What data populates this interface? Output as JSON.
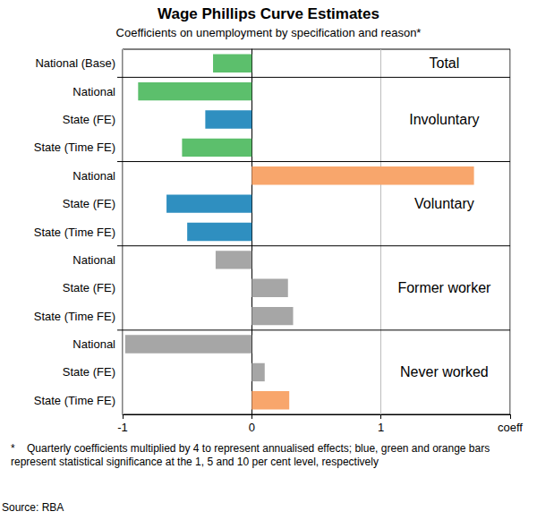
{
  "chart_data": {
    "type": "bar",
    "orientation": "horizontal",
    "title": "Wage Phillips Curve Estimates",
    "subtitle": "Coefficients on unemployment by specification and reason*",
    "categories": [
      "National (Base)",
      "National",
      "State (FE)",
      "State (Time FE)",
      "National",
      "State (FE)",
      "State (Time FE)",
      "National",
      "State (FE)",
      "State (Time FE)",
      "National",
      "State (FE)",
      "State (Time FE)"
    ],
    "values": [
      -0.3,
      -0.88,
      -0.36,
      -0.54,
      1.72,
      -0.66,
      -0.5,
      -0.28,
      0.28,
      0.32,
      -0.98,
      0.1,
      0.29
    ],
    "colors": [
      "#5cbf6c",
      "#5cbf6c",
      "#2f8fc0",
      "#5cbf6c",
      "#f8a66c",
      "#2f8fc0",
      "#2f8fc0",
      "#a6a6a6",
      "#a6a6a6",
      "#a6a6a6",
      "#a6a6a6",
      "#a6a6a6",
      "#f8a66c"
    ],
    "groups": [
      {
        "name": "Total",
        "size": 1
      },
      {
        "name": "Involuntary",
        "size": 3
      },
      {
        "name": "Voluntary",
        "size": 3
      },
      {
        "name": "Former worker",
        "size": 3
      },
      {
        "name": "Never worked",
        "size": 3
      }
    ],
    "xlim": [
      -1,
      2
    ],
    "xticks": [
      -1,
      0,
      1,
      {
        "value": 2,
        "label": "coeff"
      }
    ],
    "grid": true,
    "notes": "*    Quarterly coefficients multiplied by 4 to represent annualised effects; blue, green and orange bars represent statistical significance at the 1, 5 and 10 per cent level, respectively",
    "source": "Source: RBA"
  }
}
